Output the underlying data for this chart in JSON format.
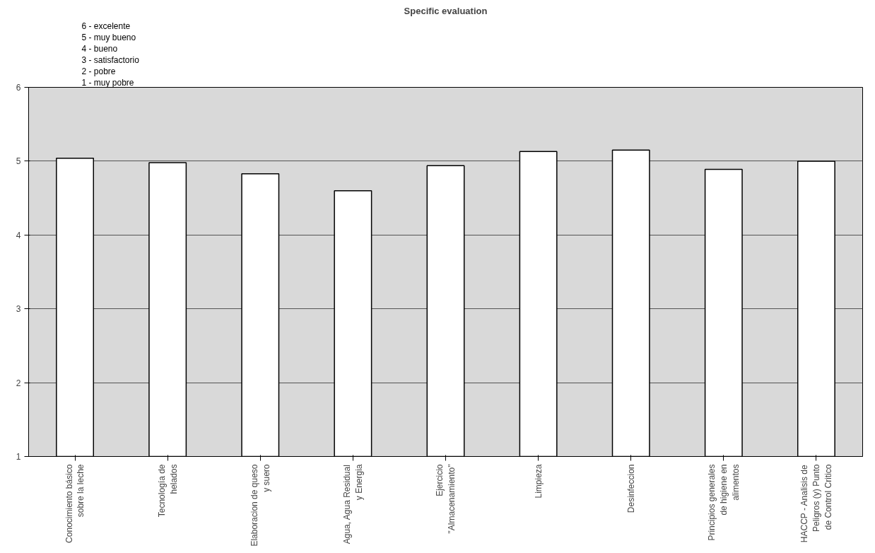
{
  "chart_data": {
    "type": "bar",
    "title": "Specific evaluation",
    "categories": [
      "Conocimiento básico sobre la leche",
      "Tecnología de helados",
      "Elaboracion de queso y suero",
      "Agua, Agua Residual y Energia",
      "Ejercicio \"Almacenamiento\"",
      "Limpieza",
      "Desinfeccion",
      "Principios generales de higiene en alimentos",
      "HACCP - Analisis de Peligros (y) Punto de Control Critico"
    ],
    "values": [
      5.04,
      4.98,
      4.83,
      4.6,
      4.94,
      5.13,
      5.15,
      4.89,
      5.0
    ],
    "color": "#ffffff",
    "ylim": [
      1,
      6
    ],
    "yticks": [
      1,
      2,
      3,
      4,
      5,
      6
    ],
    "grid": "y",
    "annotations": [
      "6 - excelente",
      "5 - muy bueno",
      "4 - bueno",
      "3 - satisfactorio",
      "2 - pobre",
      "1 - muy pobre"
    ]
  }
}
